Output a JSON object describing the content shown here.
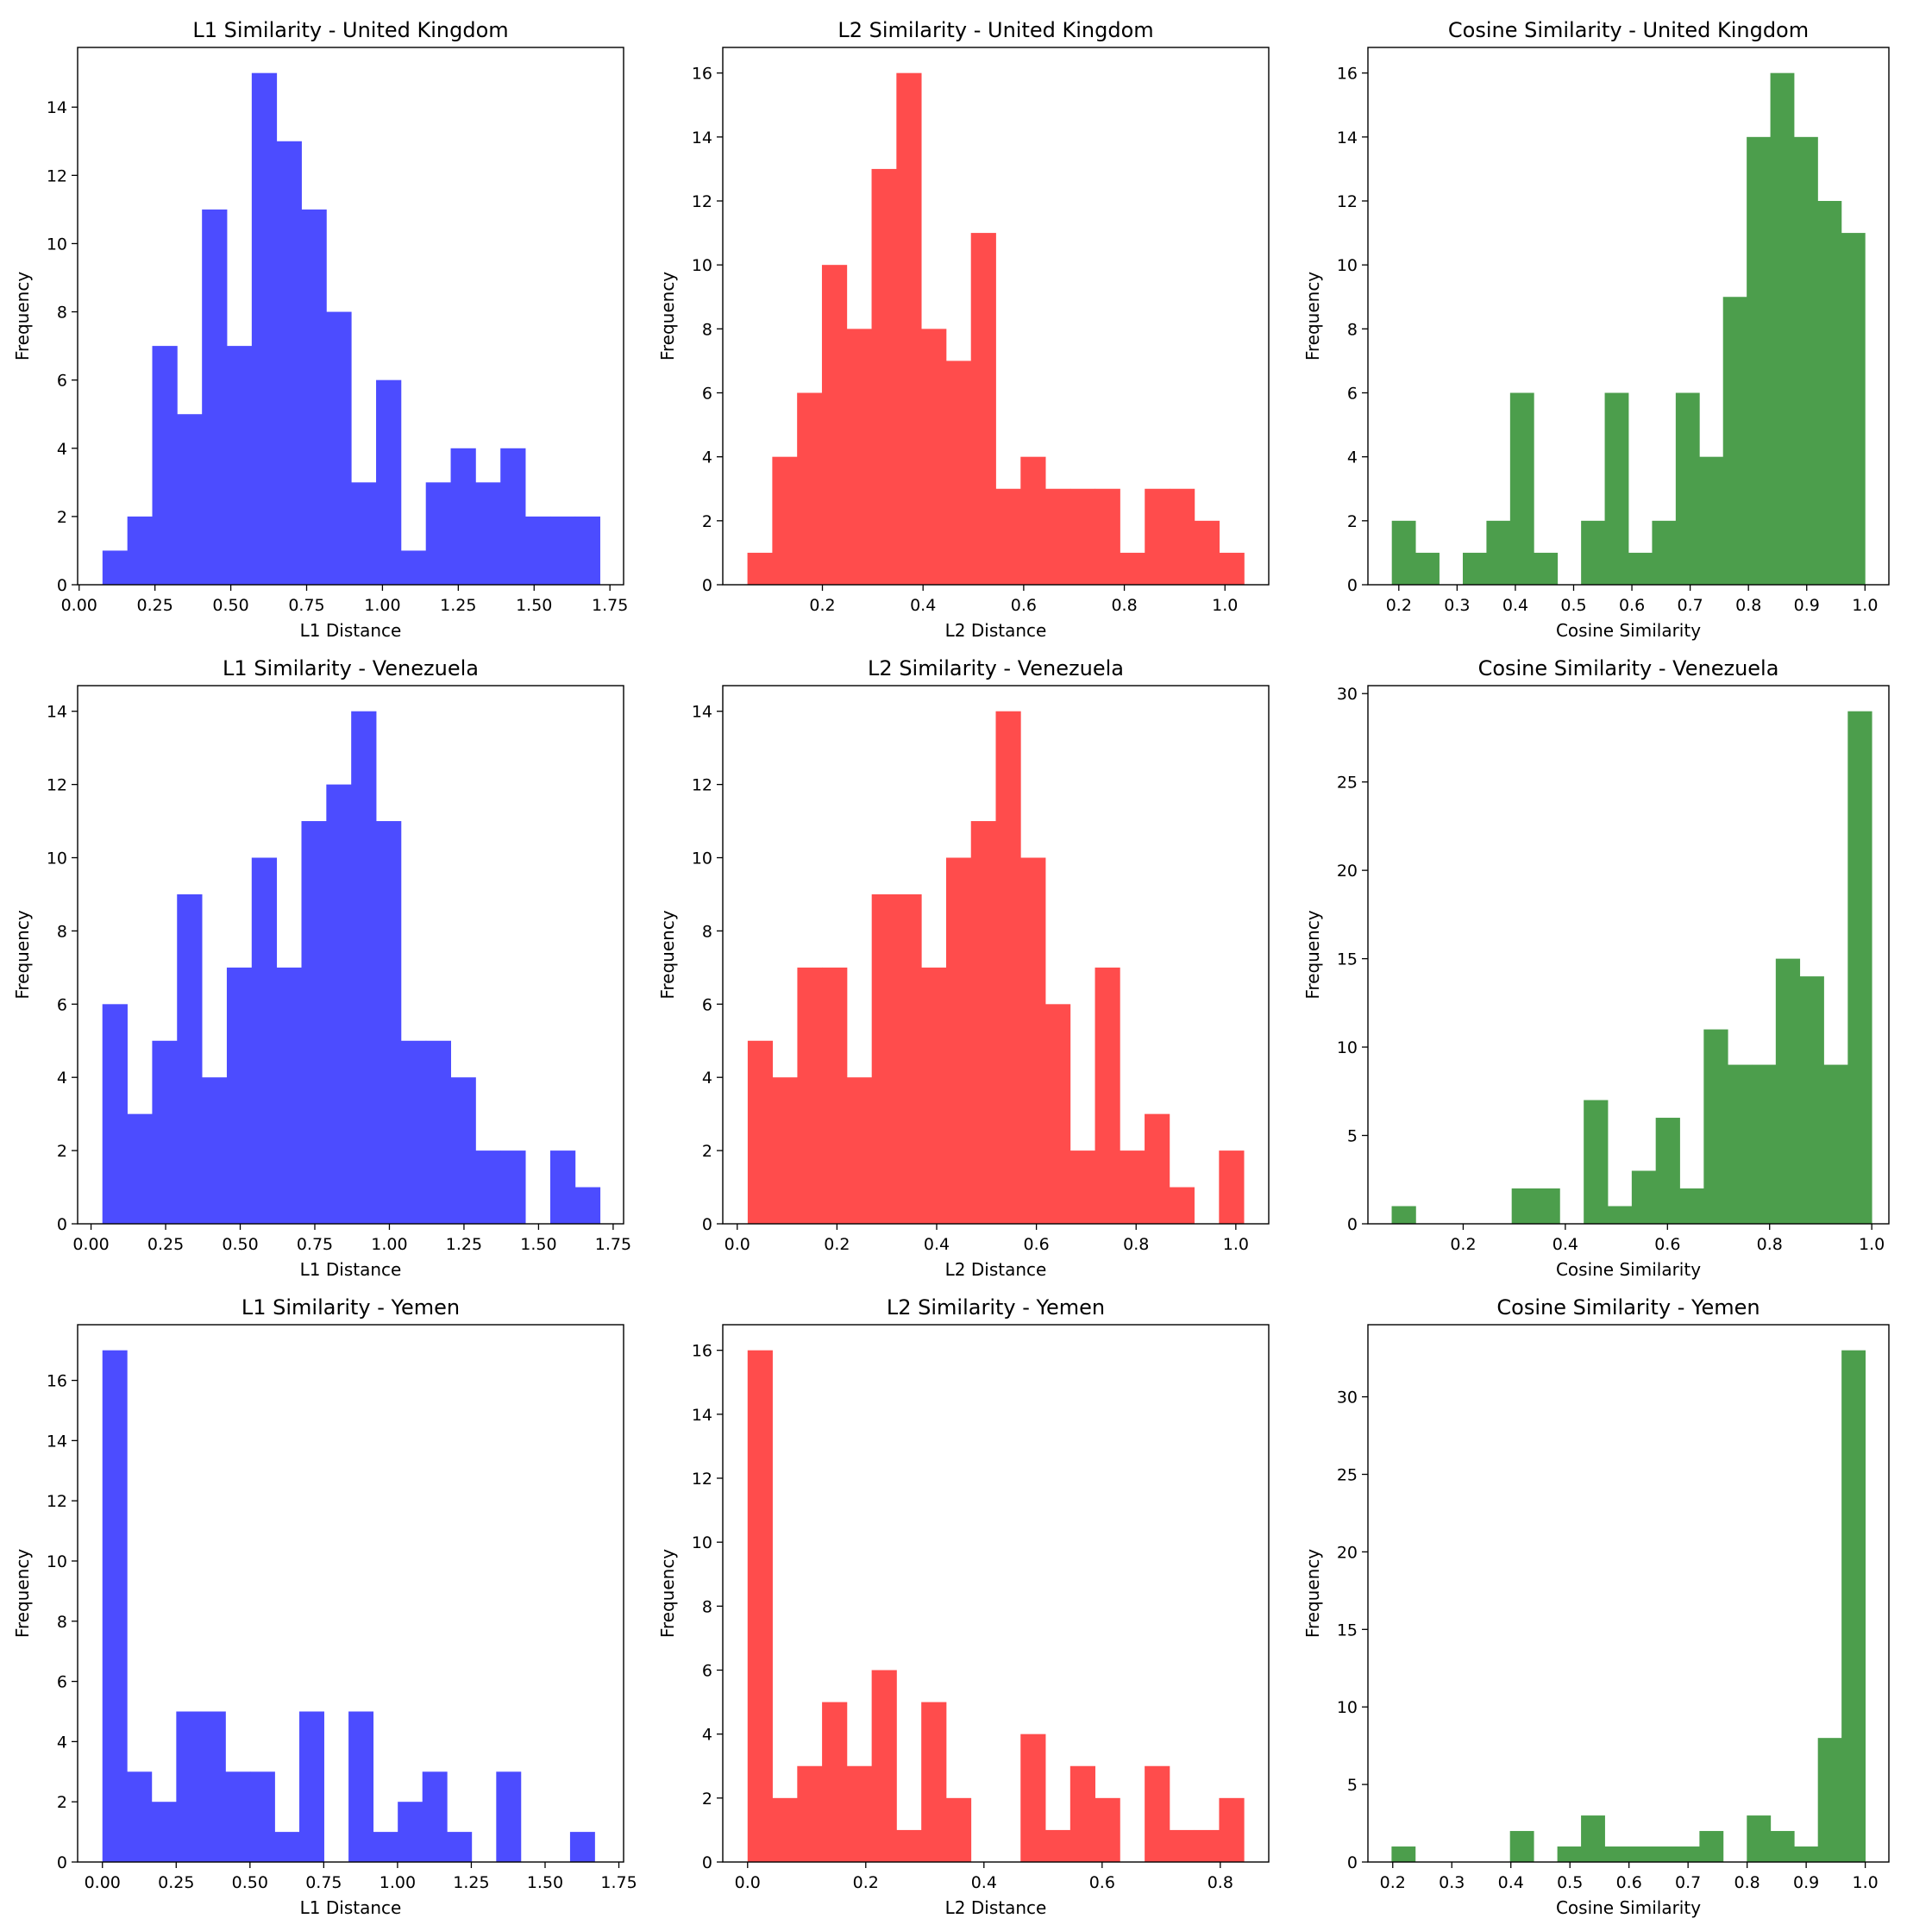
{
  "figure": {
    "background": "#ffffff"
  },
  "chart_data": [
    {
      "type": "bar",
      "title": "L1 Similarity - United Kingdom",
      "xlabel": "L1 Distance",
      "ylabel": "Frequency",
      "color": "#4c4cff",
      "xlim": [
        -0.005,
        1.795
      ],
      "ylim": [
        0,
        15.75
      ],
      "xticks": [
        0,
        0.25,
        0.5,
        0.75,
        1.0,
        1.25,
        1.5,
        1.75
      ],
      "xtick_labels": [
        "0.00",
        "0.25",
        "0.50",
        "0.75",
        "1.00",
        "1.25",
        "1.50",
        "1.75"
      ],
      "yticks": [
        0,
        2,
        4,
        6,
        8,
        10,
        12,
        14
      ],
      "yticks_labels": [
        "0",
        "2",
        "4",
        "6",
        "8",
        "10",
        "12",
        "14"
      ],
      "bin_start": 0.077,
      "bin_width": 0.082,
      "values": [
        1,
        2,
        7,
        5,
        11,
        7,
        15,
        13,
        11,
        8,
        3,
        6,
        1,
        3,
        4,
        3,
        4,
        2,
        2,
        2
      ]
    },
    {
      "type": "bar",
      "title": "L2 Similarity - United Kingdom",
      "xlabel": "L2 Distance",
      "ylabel": "Frequency",
      "color": "#ff4c4c",
      "xlim": [
        0.002,
        1.087
      ],
      "ylim": [
        0,
        16.8
      ],
      "xticks": [
        0.2,
        0.4,
        0.6,
        0.8,
        1.0
      ],
      "xtick_labels": [
        "0.2",
        "0.4",
        "0.6",
        "0.8",
        "1.0"
      ],
      "yticks": [
        0,
        2,
        4,
        6,
        8,
        10,
        12,
        14,
        16
      ],
      "yticks_labels": [
        "0",
        "2",
        "4",
        "6",
        "8",
        "10",
        "12",
        "14",
        "16"
      ],
      "bin_start": 0.051,
      "bin_width": 0.04935,
      "values": [
        1,
        4,
        6,
        10,
        8,
        13,
        16,
        8,
        7,
        11,
        3,
        4,
        3,
        3,
        3,
        1,
        3,
        3,
        2,
        1
      ]
    },
    {
      "type": "bar",
      "title": "Cosine Similarity - United Kingdom",
      "xlabel": "Cosine Similarity",
      "ylabel": "Frequency",
      "color": "#4c9e4c",
      "xlim": [
        0.147,
        1.041
      ],
      "ylim": [
        0,
        16.8
      ],
      "xticks": [
        0.2,
        0.3,
        0.4,
        0.5,
        0.6,
        0.7,
        0.8,
        0.9,
        1.0
      ],
      "xtick_labels": [
        "0.2",
        "0.3",
        "0.4",
        "0.5",
        "0.6",
        "0.7",
        "0.8",
        "0.9",
        "1.0"
      ],
      "yticks": [
        0,
        2,
        4,
        6,
        8,
        10,
        12,
        14,
        16
      ],
      "yticks_labels": [
        "0",
        "2",
        "4",
        "6",
        "8",
        "10",
        "12",
        "14",
        "16"
      ],
      "bin_start": 0.188,
      "bin_width": 0.0406,
      "values": [
        2,
        1,
        0,
        1,
        2,
        6,
        1,
        0,
        2,
        6,
        1,
        2,
        6,
        4,
        9,
        14,
        16,
        14,
        12,
        11
      ]
    },
    {
      "type": "bar",
      "title": "L1 Similarity - Venezuela",
      "xlabel": "L1 Distance",
      "ylabel": "Frequency",
      "color": "#4c4cff",
      "xlim": [
        -0.045,
        1.785
      ],
      "ylim": [
        0,
        14.7
      ],
      "xticks": [
        0,
        0.25,
        0.5,
        0.75,
        1.0,
        1.25,
        1.5,
        1.75
      ],
      "xtick_labels": [
        "0.00",
        "0.25",
        "0.50",
        "0.75",
        "1.00",
        "1.25",
        "1.50",
        "1.75"
      ],
      "yticks": [
        0,
        2,
        4,
        6,
        8,
        10,
        12,
        14
      ],
      "yticks_labels": [
        "0",
        "2",
        "4",
        "6",
        "8",
        "10",
        "12",
        "14"
      ],
      "bin_start": 0.038,
      "bin_width": 0.0834,
      "values": [
        6,
        3,
        5,
        9,
        4,
        7,
        10,
        7,
        11,
        12,
        14,
        11,
        5,
        5,
        4,
        2,
        2,
        0,
        2,
        1
      ]
    },
    {
      "type": "bar",
      "title": "L2 Similarity - Venezuela",
      "xlabel": "L2 Distance",
      "ylabel": "Frequency",
      "color": "#ff4c4c",
      "xlim": [
        -0.029,
        1.066
      ],
      "ylim": [
        0,
        14.7
      ],
      "xticks": [
        0,
        0.2,
        0.4,
        0.6,
        0.8,
        1.0
      ],
      "xtick_labels": [
        "0.0",
        "0.2",
        "0.4",
        "0.6",
        "0.8",
        "1.0"
      ],
      "yticks": [
        0,
        2,
        4,
        6,
        8,
        10,
        12,
        14
      ],
      "yticks_labels": [
        "0",
        "2",
        "4",
        "6",
        "8",
        "10",
        "12",
        "14"
      ],
      "bin_start": 0.021,
      "bin_width": 0.04975,
      "values": [
        5,
        4,
        7,
        7,
        4,
        9,
        9,
        7,
        10,
        11,
        14,
        10,
        6,
        2,
        7,
        2,
        3,
        1,
        0,
        2
      ]
    },
    {
      "type": "bar",
      "title": "Cosine Similarity - Venezuela",
      "xlabel": "Cosine Similarity",
      "ylabel": "Frequency",
      "color": "#4c9e4c",
      "xlim": [
        0.0135,
        1.0335
      ],
      "ylim": [
        0,
        30.45
      ],
      "xticks": [
        0.2,
        0.4,
        0.6,
        0.8,
        1.0
      ],
      "xtick_labels": [
        "0.2",
        "0.4",
        "0.6",
        "0.8",
        "1.0"
      ],
      "yticks": [
        0,
        5,
        10,
        15,
        20,
        25,
        30
      ],
      "yticks_labels": [
        "0",
        "5",
        "10",
        "15",
        "20",
        "25",
        "30"
      ],
      "bin_start": 0.06,
      "bin_width": 0.047,
      "values": [
        1,
        0,
        0,
        0,
        0,
        2,
        2,
        0,
        7,
        1,
        3,
        6,
        2,
        11,
        9,
        9,
        15,
        14,
        9,
        29
      ]
    },
    {
      "type": "bar",
      "title": "L1 Similarity - Yemen",
      "xlabel": "L1 Distance",
      "ylabel": "Frequency",
      "color": "#4c4cff",
      "xlim": [
        -0.084,
        1.766
      ],
      "ylim": [
        0,
        17.85
      ],
      "xticks": [
        0,
        0.25,
        0.5,
        0.75,
        1.0,
        1.25,
        1.5,
        1.75
      ],
      "xtick_labels": [
        "0.00",
        "0.25",
        "0.50",
        "0.75",
        "1.00",
        "1.25",
        "1.50",
        "1.75"
      ],
      "yticks": [
        0,
        2,
        4,
        6,
        8,
        10,
        12,
        14,
        16
      ],
      "yticks_labels": [
        "0",
        "2",
        "4",
        "6",
        "8",
        "10",
        "12",
        "14",
        "16"
      ],
      "bin_start": 0.0,
      "bin_width": 0.0834,
      "values": [
        17,
        3,
        2,
        5,
        5,
        3,
        3,
        1,
        5,
        0,
        5,
        1,
        2,
        3,
        1,
        0,
        3,
        0,
        0,
        1
      ]
    },
    {
      "type": "bar",
      "title": "L2 Similarity - Yemen",
      "xlabel": "L2 Distance",
      "ylabel": "Frequency",
      "color": "#ff4c4c",
      "xlim": [
        -0.042,
        0.882
      ],
      "ylim": [
        0,
        16.8
      ],
      "xticks": [
        0,
        0.2,
        0.4,
        0.6,
        0.8
      ],
      "xtick_labels": [
        "0.0",
        "0.2",
        "0.4",
        "0.6",
        "0.8"
      ],
      "yticks": [
        0,
        2,
        4,
        6,
        8,
        10,
        12,
        14,
        16
      ],
      "yticks_labels": [
        "0",
        "2",
        "4",
        "6",
        "8",
        "10",
        "12",
        "14",
        "16"
      ],
      "bin_start": 0.0,
      "bin_width": 0.042,
      "values": [
        16,
        2,
        3,
        5,
        3,
        6,
        1,
        5,
        2,
        0,
        0,
        4,
        1,
        3,
        2,
        0,
        3,
        1,
        1,
        2
      ]
    },
    {
      "type": "bar",
      "title": "Cosine Similarity - Yemen",
      "xlabel": "Cosine Similarity",
      "ylabel": "Frequency",
      "color": "#4c9e4c",
      "xlim": [
        0.158,
        1.04
      ],
      "ylim": [
        0,
        34.65
      ],
      "xticks": [
        0.2,
        0.3,
        0.4,
        0.5,
        0.6,
        0.7,
        0.8,
        0.9,
        1.0
      ],
      "xtick_labels": [
        "0.2",
        "0.3",
        "0.4",
        "0.5",
        "0.6",
        "0.7",
        "0.8",
        "0.9",
        "1.0"
      ],
      "yticks": [
        0,
        5,
        10,
        15,
        20,
        25,
        30
      ],
      "yticks_labels": [
        "0",
        "5",
        "10",
        "15",
        "20",
        "25",
        "30"
      ],
      "bin_start": 0.198,
      "bin_width": 0.0401,
      "values": [
        1,
        0,
        0,
        0,
        0,
        2,
        0,
        1,
        3,
        1,
        1,
        1,
        1,
        2,
        0,
        3,
        2,
        1,
        8,
        33
      ]
    }
  ]
}
